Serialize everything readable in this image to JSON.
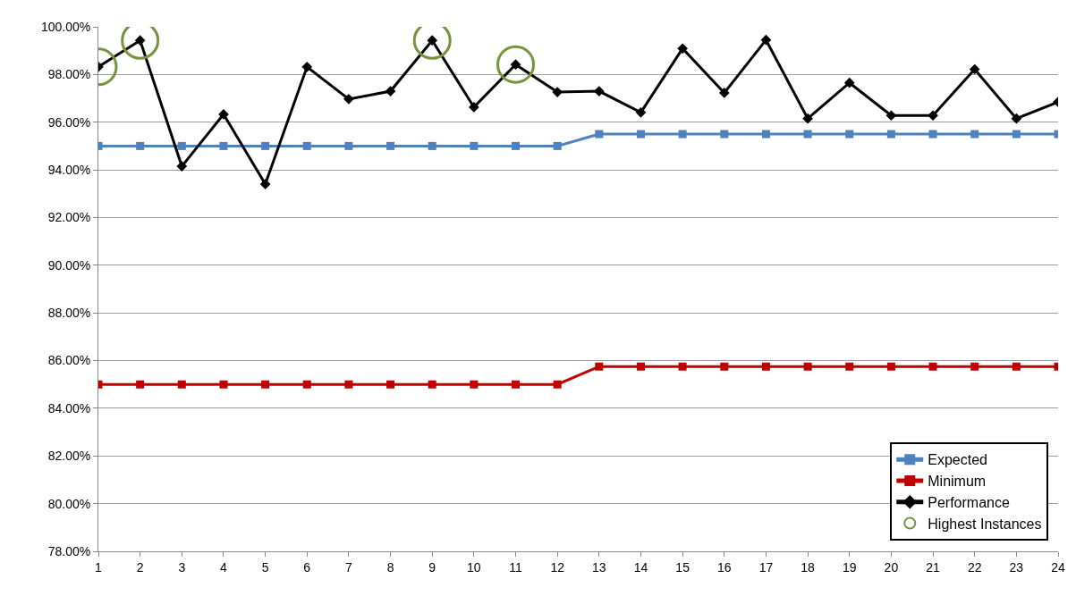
{
  "chart_data": {
    "type": "line",
    "x": [
      1,
      2,
      3,
      4,
      5,
      6,
      7,
      8,
      9,
      10,
      11,
      12,
      13,
      14,
      15,
      16,
      17,
      18,
      19,
      20,
      21,
      22,
      23,
      24
    ],
    "xlim": [
      1,
      24
    ],
    "xticks": [
      1,
      2,
      3,
      4,
      5,
      6,
      7,
      8,
      9,
      10,
      11,
      12,
      13,
      14,
      15,
      16,
      17,
      18,
      19,
      20,
      21,
      22,
      23,
      24
    ],
    "ylim": [
      78,
      100
    ],
    "yticks": [
      {
        "value": 78,
        "label": "78.00%"
      },
      {
        "value": 80,
        "label": "80.00%"
      },
      {
        "value": 82,
        "label": "82.00%"
      },
      {
        "value": 84,
        "label": "84.00%"
      },
      {
        "value": 86,
        "label": "86.00%"
      },
      {
        "value": 88,
        "label": "88.00%"
      },
      {
        "value": 90,
        "label": "90.00%"
      },
      {
        "value": 92,
        "label": "92.00%"
      },
      {
        "value": 94,
        "label": "94.00%"
      },
      {
        "value": 96,
        "label": "96.00%"
      },
      {
        "value": 98,
        "label": "98.00%"
      },
      {
        "value": 100,
        "label": "100.00%"
      }
    ],
    "grid": "y",
    "legend": "bottom right",
    "series": [
      {
        "name": "Highest Instances",
        "type": "scatter",
        "marker": "circle",
        "color": "#77933c",
        "x": [
          1,
          2,
          9,
          11
        ],
        "values": [
          98.32,
          99.43,
          99.43,
          98.42
        ]
      },
      {
        "name": "Expected",
        "marker": "square",
        "color": "#4f81bd",
        "values": [
          95,
          95,
          95,
          95,
          95,
          95,
          95,
          95,
          95,
          95,
          95,
          95,
          95.5,
          95.5,
          95.5,
          95.5,
          95.5,
          95.5,
          95.5,
          95.5,
          95.5,
          95.5,
          95.5,
          95.5
        ]
      },
      {
        "name": "Minimum",
        "marker": "square",
        "color": "#c00000",
        "values": [
          85,
          85,
          85,
          85,
          85,
          85,
          85,
          85,
          85,
          85,
          85,
          85,
          85.75,
          85.75,
          85.75,
          85.75,
          85.75,
          85.75,
          85.75,
          85.75,
          85.75,
          85.75,
          85.75,
          85.75
        ]
      },
      {
        "name": "Performance",
        "marker": "diamond",
        "color": "#000000",
        "values": [
          98.32,
          99.43,
          94.15,
          96.33,
          93.4,
          98.32,
          96.97,
          97.3,
          99.43,
          96.63,
          98.42,
          97.26,
          97.3,
          96.41,
          99.09,
          97.23,
          99.45,
          96.15,
          97.65,
          96.28,
          96.28,
          98.22,
          96.15,
          96.85
        ]
      }
    ]
  }
}
